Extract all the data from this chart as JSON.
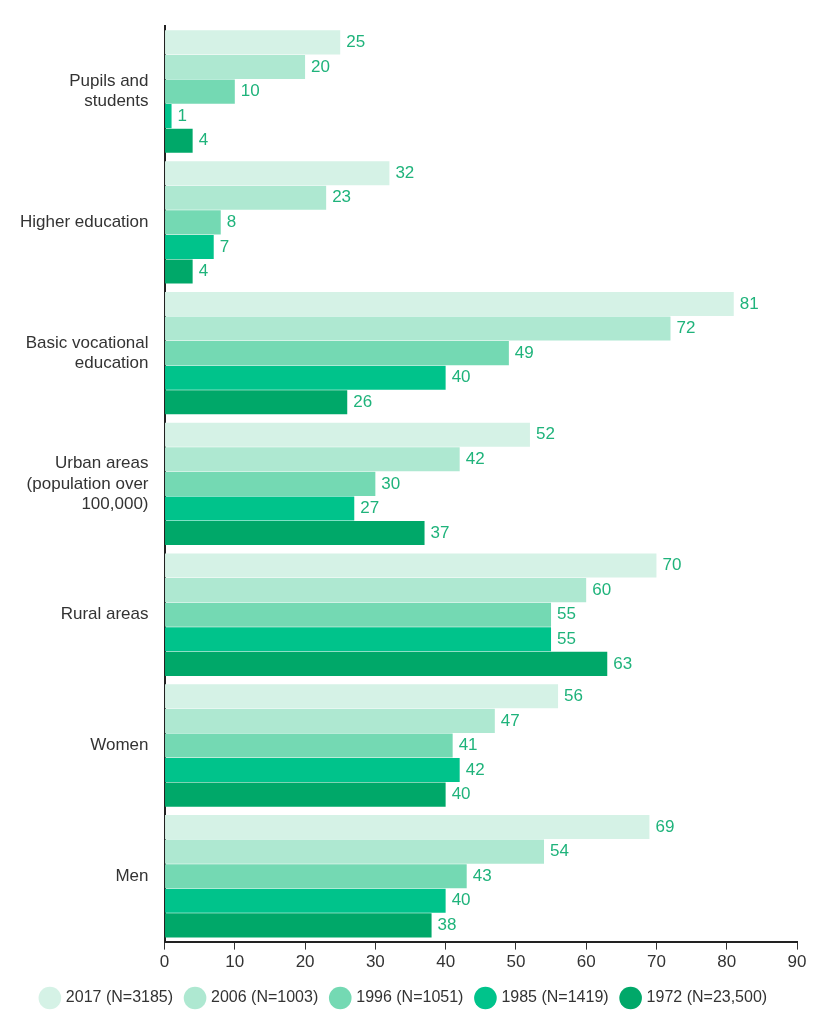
{
  "chart_data": {
    "type": "bar",
    "orientation": "horizontal",
    "categories": [
      "Pupils and students",
      "Higher education",
      "Basic vocational education",
      "Urban areas (population over 100,000)",
      "Rural areas",
      "Women",
      "Men"
    ],
    "series": [
      {
        "name": "2017 (N=3185)",
        "color": "#d5f2e6",
        "values": [
          25,
          32,
          81,
          52,
          70,
          56,
          69
        ]
      },
      {
        "name": "2006 (N=1003)",
        "color": "#aee8d1",
        "values": [
          20,
          23,
          72,
          42,
          60,
          47,
          54
        ]
      },
      {
        "name": "1996 (N=1051)",
        "color": "#74d9b3",
        "values": [
          10,
          8,
          49,
          30,
          55,
          41,
          43
        ]
      },
      {
        "name": "1985 (N=1419)",
        "color": "#00c38b",
        "values": [
          1,
          7,
          40,
          27,
          55,
          42,
          40
        ]
      },
      {
        "name": "1972 (N=23,500)",
        "color": "#00a869",
        "values": [
          4,
          4,
          26,
          37,
          63,
          40,
          38
        ]
      }
    ],
    "xlim": [
      0,
      90
    ],
    "xticks": [
      0,
      10,
      20,
      30,
      40,
      50,
      60,
      70,
      80,
      90
    ],
    "grid": false,
    "legend": "bottom",
    "marker": "circle",
    "data_labels": true
  }
}
